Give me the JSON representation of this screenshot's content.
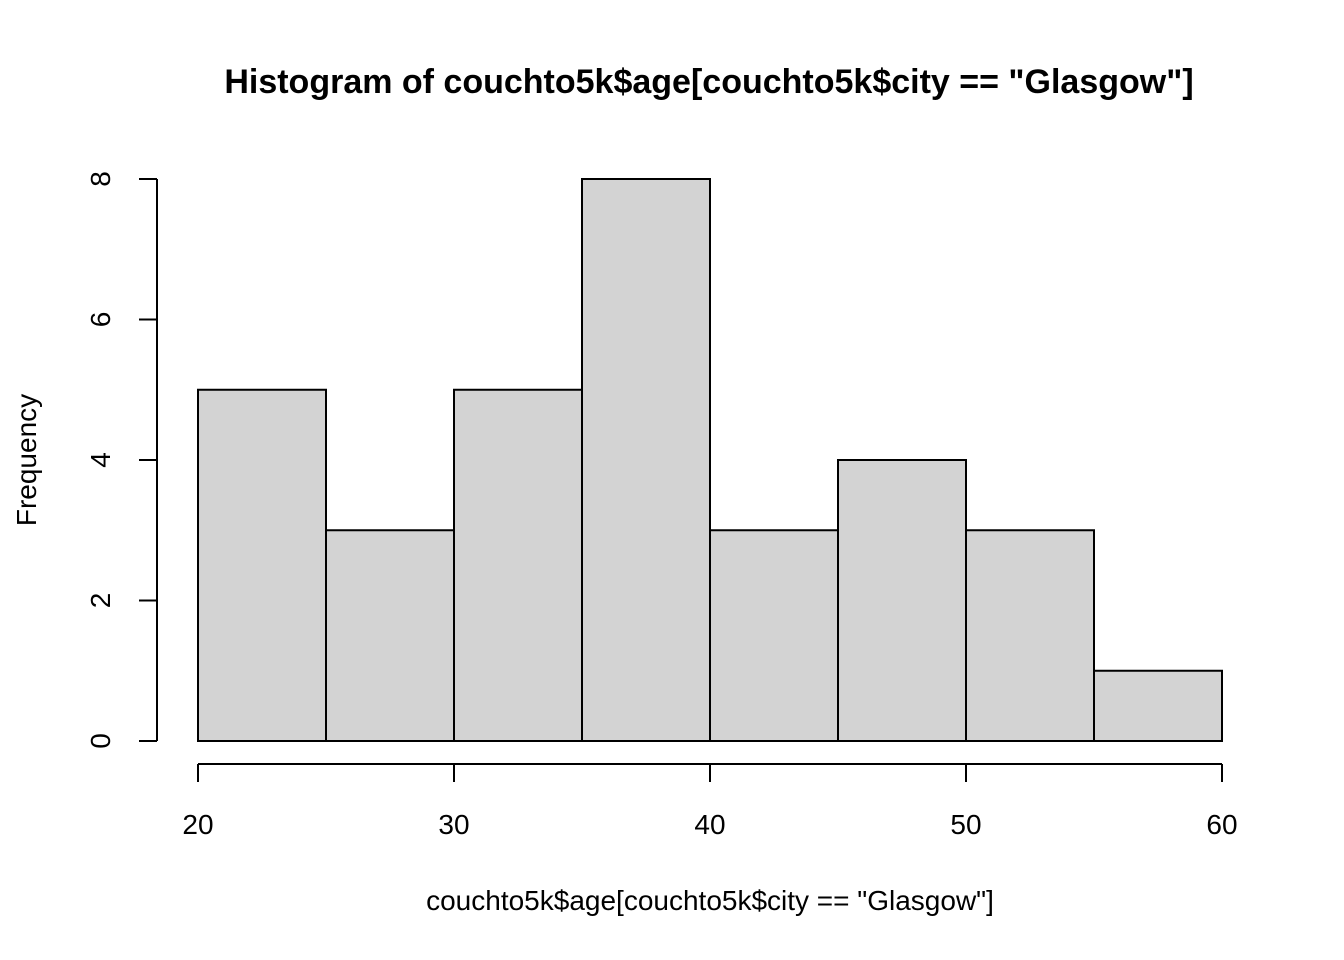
{
  "chart_data": {
    "type": "bar",
    "subtype": "histogram",
    "title": "Histogram of couchto5k$age[couchto5k$city == \"Glasgow\"]",
    "xlabel": "couchto5k$age[couchto5k$city == \"Glasgow\"]",
    "ylabel": "Frequency",
    "bins": [
      {
        "start": 20,
        "end": 25,
        "count": 5
      },
      {
        "start": 25,
        "end": 30,
        "count": 3
      },
      {
        "start": 30,
        "end": 35,
        "count": 5
      },
      {
        "start": 35,
        "end": 40,
        "count": 8
      },
      {
        "start": 40,
        "end": 45,
        "count": 3
      },
      {
        "start": 45,
        "end": 50,
        "count": 4
      },
      {
        "start": 50,
        "end": 55,
        "count": 3
      },
      {
        "start": 55,
        "end": 60,
        "count": 1
      }
    ],
    "xlim": [
      20,
      60
    ],
    "ylim": [
      0,
      8
    ],
    "x_ticks": [
      "20",
      "30",
      "40",
      "50",
      "60"
    ],
    "y_ticks": [
      "0",
      "2",
      "4",
      "6",
      "8"
    ],
    "grid": false,
    "legend": "none",
    "colors": {
      "bar_fill": "#d3d3d3",
      "bar_stroke": "#000000",
      "background": "#ffffff"
    }
  }
}
